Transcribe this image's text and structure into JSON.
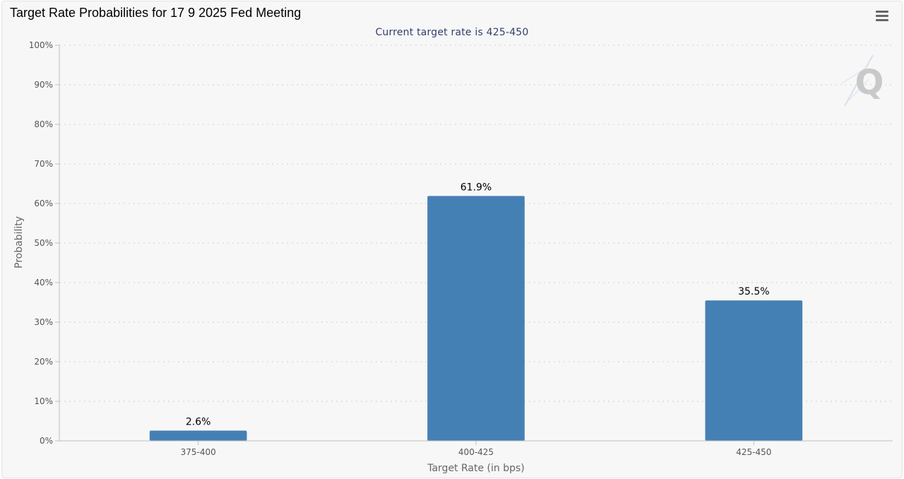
{
  "chart_data": {
    "type": "bar",
    "title": "Target Rate Probabilities for 17 9 2025 Fed Meeting",
    "subtitle": "Current target rate is 425-450",
    "xlabel": "Target Rate (in bps)",
    "ylabel": "Probability",
    "categories": [
      "375-400",
      "400-425",
      "425-450"
    ],
    "values": [
      2.6,
      61.9,
      35.5
    ],
    "data_labels": [
      "2.6%",
      "61.9%",
      "35.5%"
    ],
    "ylim": [
      0,
      100
    ],
    "yticks": [
      0,
      10,
      20,
      30,
      40,
      50,
      60,
      70,
      80,
      90,
      100
    ],
    "ytick_labels": [
      "0%",
      "10%",
      "20%",
      "30%",
      "40%",
      "50%",
      "60%",
      "70%",
      "80%",
      "90%",
      "100%"
    ],
    "grid": "horizontal-dotted",
    "legend": "none",
    "bar_color": "#4580b5"
  },
  "toolbar": {
    "menu_icon": "hamburger-menu-icon"
  },
  "watermark": {
    "icon": "q-logo-icon",
    "text": "Q"
  }
}
